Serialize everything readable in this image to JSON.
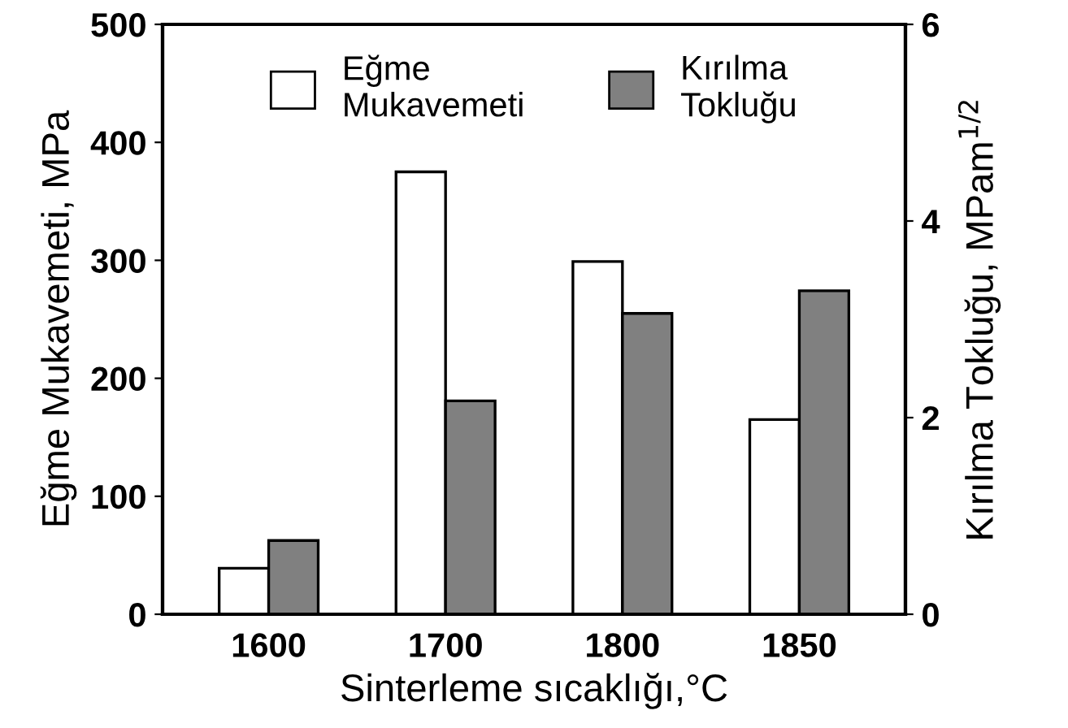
{
  "chart_data": {
    "type": "bar",
    "xlabel": "Sinterleme sıcaklığı,°C",
    "ylabel": "Eğme Mukavemeti, MPa",
    "y2label": "Kırılma Tokluğu, MPam$^{1/2}$",
    "categories": [
      "1600",
      "1700",
      "1800",
      "1850"
    ],
    "series": [
      {
        "name": "Eğme Mukavemeti",
        "color": "#ffffff",
        "values": [
          39,
          375,
          299,
          165
        ]
      },
      {
        "name": "Kırılma Tokluğu",
        "color": "#808080",
        "axis": "y2",
        "values": [
          0.75,
          2.17,
          3.06,
          3.29
        ]
      }
    ],
    "ylim": [
      0,
      500
    ],
    "yticks": [
      0,
      100,
      200,
      300,
      400,
      500
    ],
    "y2lim": [
      0,
      6
    ],
    "y2ticks": [
      0,
      2,
      4,
      6
    ],
    "legend": "top",
    "grid": false
  }
}
